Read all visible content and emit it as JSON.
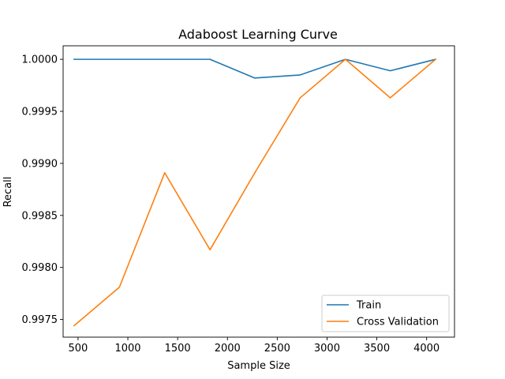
{
  "chart_data": {
    "type": "line",
    "title": "Adaboost Learning Curve",
    "xlabel": "Sample Size",
    "ylabel": "Recall",
    "xlim": [
      350,
      4280
    ],
    "ylim": [
      0.99733,
      1.00013
    ],
    "xticks": [
      500,
      1000,
      1500,
      2000,
      2500,
      3000,
      3500,
      4000
    ],
    "xtick_labels": [
      "500",
      "1000",
      "1500",
      "2000",
      "2500",
      "3000",
      "3500",
      "4000"
    ],
    "yticks": [
      0.9975,
      0.998,
      0.9985,
      0.999,
      0.9995,
      1.0
    ],
    "ytick_labels": [
      "0.9975",
      "0.9980",
      "0.9985",
      "0.9990",
      "0.9995",
      "1.0000"
    ],
    "x": [
      460,
      915,
      1370,
      1825,
      2275,
      2730,
      3185,
      3635,
      4090
    ],
    "series": [
      {
        "name": "Train",
        "color": "#1f77b4",
        "values": [
          1.0,
          1.0,
          1.0,
          1.0,
          0.99982,
          0.99985,
          1.0,
          0.99989,
          1.0
        ]
      },
      {
        "name": "Cross Validation",
        "color": "#ff7f0e",
        "values": [
          0.99744,
          0.99781,
          0.99891,
          0.99817,
          0.99891,
          0.99963,
          1.0,
          0.99963,
          1.0
        ]
      }
    ],
    "grid": false,
    "legend_position": "lower-right"
  }
}
